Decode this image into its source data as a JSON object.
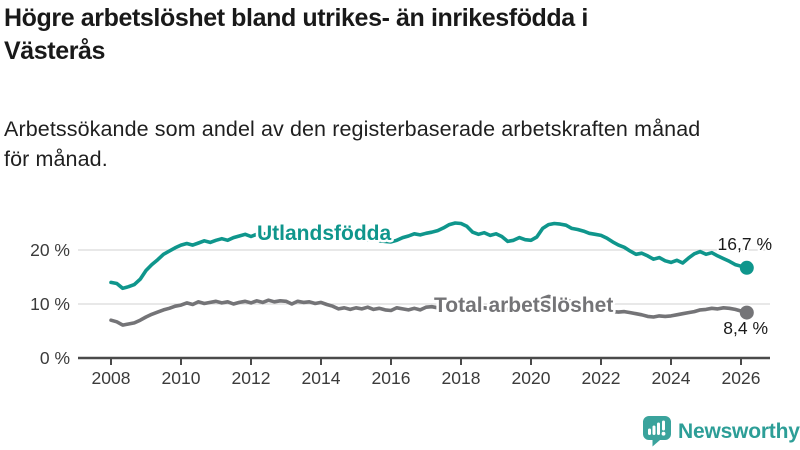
{
  "header": {
    "title_line1": "Högre arbetslöshet bland utrikes- än inrikesfödda i",
    "title_line2": "Västerås",
    "subtitle_line1": "Arbetssökande som andel av den registerbaserade arbetskraften månad",
    "subtitle_line2": "för månad."
  },
  "footer": {
    "brand": "Newsworthy",
    "logo_icon": "bar-chart-speech-bubble-icon"
  },
  "colors": {
    "series_teal": "#0f968c",
    "series_gray": "#747477",
    "axis": "#4a4a4a",
    "grid": "#d9d9d9",
    "tick_text": "#3b3b3b",
    "title_text": "#191919",
    "value_text": "#1a1a1a",
    "brand": "#2d9e97",
    "logo_icon_fill": "#3aa39c"
  },
  "chart_data": {
    "type": "line",
    "title": "Högre arbetslöshet bland utrikes- än inrikesfödda i Västerås",
    "subtitle": "Arbetssökande som andel av den registerbaserade arbetskraften månad för månad.",
    "unit": "%",
    "x_start": 2008.0,
    "x_step_years": 0.166667,
    "xlim": [
      2007.05,
      2026.85
    ],
    "ylim": [
      0,
      27
    ],
    "grid": "horizontal-only",
    "legend_position": "inline-labels",
    "x_ticks": [
      2008,
      2010,
      2012,
      2014,
      2016,
      2018,
      2020,
      2022,
      2024,
      2026
    ],
    "y_ticks": [
      {
        "value": 0,
        "label": "0 %"
      },
      {
        "value": 10,
        "label": "10 %"
      },
      {
        "value": 20,
        "label": "20 %"
      }
    ],
    "series": [
      {
        "name": "Utlandsfödda",
        "color": "#0f968c",
        "end_value": 16.7,
        "end_label": "16,7 %",
        "values": [
          14.0,
          13.8,
          12.9,
          13.2,
          13.6,
          14.6,
          16.2,
          17.3,
          18.2,
          19.2,
          19.8,
          20.4,
          20.9,
          21.2,
          20.9,
          21.3,
          21.7,
          21.4,
          21.8,
          22.1,
          21.8,
          22.3,
          22.6,
          22.9,
          22.5,
          22.9,
          23.1,
          22.8,
          23.2,
          23.0,
          23.3,
          23.5,
          23.2,
          23.4,
          23.1,
          22.9,
          23.1,
          22.8,
          22.5,
          22.7,
          22.4,
          22.2,
          22.4,
          22.1,
          21.9,
          22.0,
          21.7,
          21.6,
          21.5,
          21.8,
          22.3,
          22.6,
          23.0,
          22.8,
          23.1,
          23.3,
          23.6,
          24.1,
          24.7,
          25.0,
          24.9,
          24.4,
          23.3,
          22.9,
          23.2,
          22.7,
          23.0,
          22.5,
          21.6,
          21.8,
          22.3,
          21.9,
          21.8,
          22.4,
          24.0,
          24.7,
          24.9,
          24.8,
          24.6,
          24.0,
          23.8,
          23.5,
          23.1,
          22.9,
          22.7,
          22.2,
          21.5,
          20.9,
          20.5,
          19.8,
          19.2,
          19.4,
          18.9,
          18.3,
          18.6,
          18.0,
          17.7,
          18.1,
          17.6,
          18.5,
          19.3,
          19.7,
          19.2,
          19.5,
          18.9,
          18.4,
          17.9,
          17.3,
          17.0,
          16.7
        ]
      },
      {
        "name": "Total arbetslöshet",
        "color": "#747477",
        "end_value": 8.4,
        "end_label": "8,4 %",
        "values": [
          7.0,
          6.7,
          6.1,
          6.3,
          6.5,
          7.0,
          7.6,
          8.1,
          8.5,
          8.9,
          9.2,
          9.6,
          9.8,
          10.2,
          9.9,
          10.4,
          10.1,
          10.3,
          10.5,
          10.2,
          10.4,
          10.0,
          10.3,
          10.5,
          10.2,
          10.6,
          10.3,
          10.7,
          10.4,
          10.6,
          10.5,
          10.0,
          10.5,
          10.3,
          10.4,
          10.1,
          10.3,
          9.9,
          9.6,
          9.1,
          9.3,
          9.0,
          9.3,
          9.1,
          9.4,
          9.0,
          9.2,
          8.9,
          8.8,
          9.3,
          9.1,
          8.9,
          9.2,
          8.9,
          9.4,
          9.5,
          9.3,
          9.4,
          9.3,
          9.4,
          9.5,
          9.3,
          9.4,
          9.2,
          9.3,
          9.1,
          9.0,
          9.1,
          9.0,
          9.2,
          9.1,
          9.3,
          9.5,
          10.1,
          11.0,
          11.4,
          11.2,
          11.0,
          10.8,
          10.4,
          10.1,
          9.8,
          9.5,
          9.3,
          9.1,
          8.8,
          8.6,
          8.5,
          8.6,
          8.4,
          8.2,
          8.0,
          7.7,
          7.6,
          7.8,
          7.7,
          7.8,
          8.0,
          8.2,
          8.4,
          8.6,
          8.9,
          9.0,
          9.2,
          9.1,
          9.3,
          9.2,
          9.0,
          8.7,
          8.4
        ]
      }
    ]
  }
}
